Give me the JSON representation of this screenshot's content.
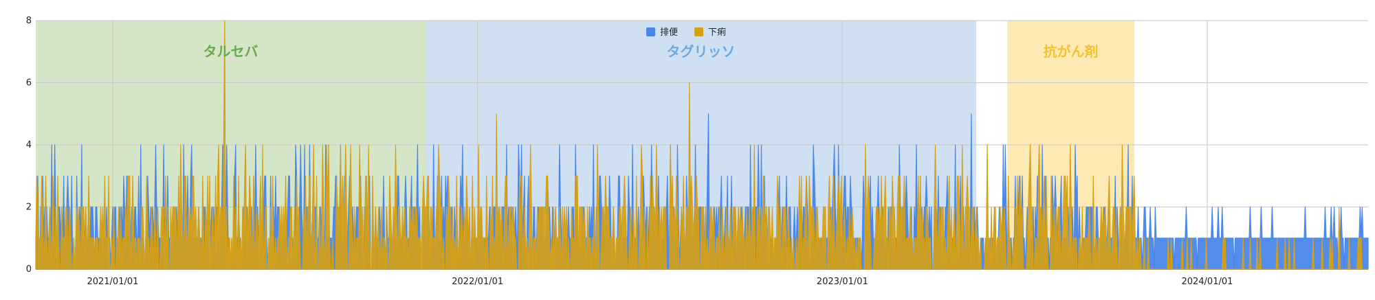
{
  "chart_data": {
    "type": "area",
    "title": "",
    "xlabel": "",
    "ylabel": "",
    "ylim": [
      0,
      8
    ],
    "y_ticks": [
      "0",
      "2",
      "4",
      "6",
      "8"
    ],
    "x_range": [
      "2020/10/16",
      "2024/06/10"
    ],
    "x_ticks": [
      {
        "date": "2021/01/01",
        "label": "2021/01/01"
      },
      {
        "date": "2022/01/01",
        "label": "2022/01/01"
      },
      {
        "date": "2023/01/01",
        "label": "2023/01/01"
      },
      {
        "date": "2024/01/01",
        "label": "2024/01/01"
      }
    ],
    "grid": true,
    "legend_position": "top-center",
    "series": [
      {
        "name": "排便",
        "color": "#4a86e8"
      },
      {
        "name": "下痢",
        "color": "#d4a017"
      }
    ],
    "regimes": [
      {
        "label": "タルセバ",
        "start": "2020/10/16",
        "end": "2021/11/10",
        "color": "#d5e6c8",
        "text_color": "#6aa84f"
      },
      {
        "label": "タグリッソ",
        "start": "2021/11/10",
        "end": "2023/05/15",
        "color": "#cfe0f2",
        "text_color": "#6fa8dc"
      },
      {
        "label": "抗がん剤",
        "start": "2023/06/15",
        "end": "2023/10/20",
        "color": "#fde9b4",
        "text_color": "#f1c232"
      }
    ],
    "annotations": [
      {
        "date": "2021/04/23",
        "series": "下痢",
        "value": 8
      },
      {
        "date": "2022/08/01",
        "series": "下痢",
        "value": 6
      },
      {
        "date": "2022/08/20",
        "series": "排便",
        "value": 5
      },
      {
        "date": "2023/05/10",
        "series": "排便",
        "value": 5
      },
      {
        "date": "2022/01/20",
        "series": "下痢",
        "value": 5
      }
    ]
  }
}
